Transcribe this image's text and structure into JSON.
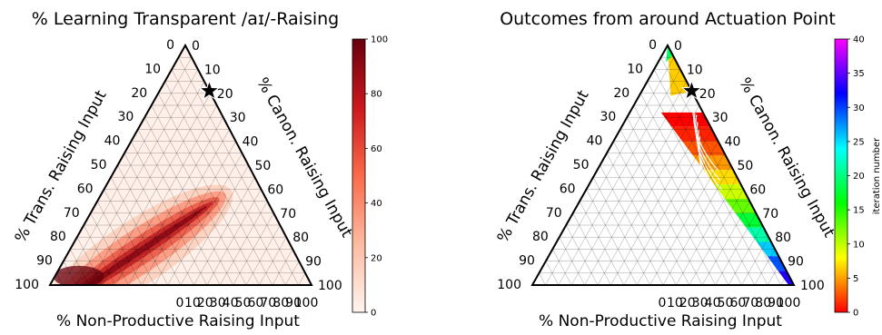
{
  "chart_data": [
    {
      "type": "ternary-heatmap",
      "title": "% Learning Transparent /aɪ/-Raising",
      "axes": {
        "bottom": "% Non-Productive Raising Input",
        "left": "% Trans. Raising Input",
        "right": "% Canon. Raising Input"
      },
      "ticks": [
        "0",
        "10",
        "20",
        "30",
        "40",
        "50",
        "60",
        "70",
        "80",
        "90",
        "100"
      ],
      "grid": true,
      "colorbar": {
        "label": "",
        "range": [
          0,
          100
        ],
        "ticks": [
          "0",
          "20",
          "40",
          "60",
          "80",
          "100"
        ],
        "colors": [
          "#fff5f0",
          "#fcbba1",
          "#fb6a4a",
          "#cb181d",
          "#67000d"
        ]
      },
      "marker": {
        "symbol": "star",
        "nonproductive": 19,
        "transparent": 0,
        "canonical": 81
      },
      "ridge": {
        "from": {
          "nonproductive": 15,
          "transparent": 85
        },
        "to": {
          "nonproductive": 38,
          "transparent": 35
        }
      }
    },
    {
      "type": "ternary-trajectories",
      "title": "Outcomes from around Actuation Point",
      "axes": {
        "bottom": "% Non-Productive Raising Input",
        "left": "% Trans. Raising Input",
        "right": "% Canon. Raising Input"
      },
      "ticks": [
        "0",
        "10",
        "20",
        "30",
        "40",
        "50",
        "60",
        "70",
        "80",
        "90",
        "100"
      ],
      "grid": true,
      "colorbar": {
        "label": "iteration number",
        "range": [
          0,
          40
        ],
        "ticks": [
          "0",
          "5",
          "10",
          "15",
          "20",
          "25",
          "30",
          "35",
          "40"
        ],
        "colors": [
          "#ff0000",
          "#ffff00",
          "#00ff00",
          "#00ffff",
          "#0000ff",
          "#ff00ff"
        ]
      },
      "marker": {
        "symbol": "star",
        "nonproductive": 19,
        "transparent": 0,
        "canonical": 81
      }
    }
  ]
}
